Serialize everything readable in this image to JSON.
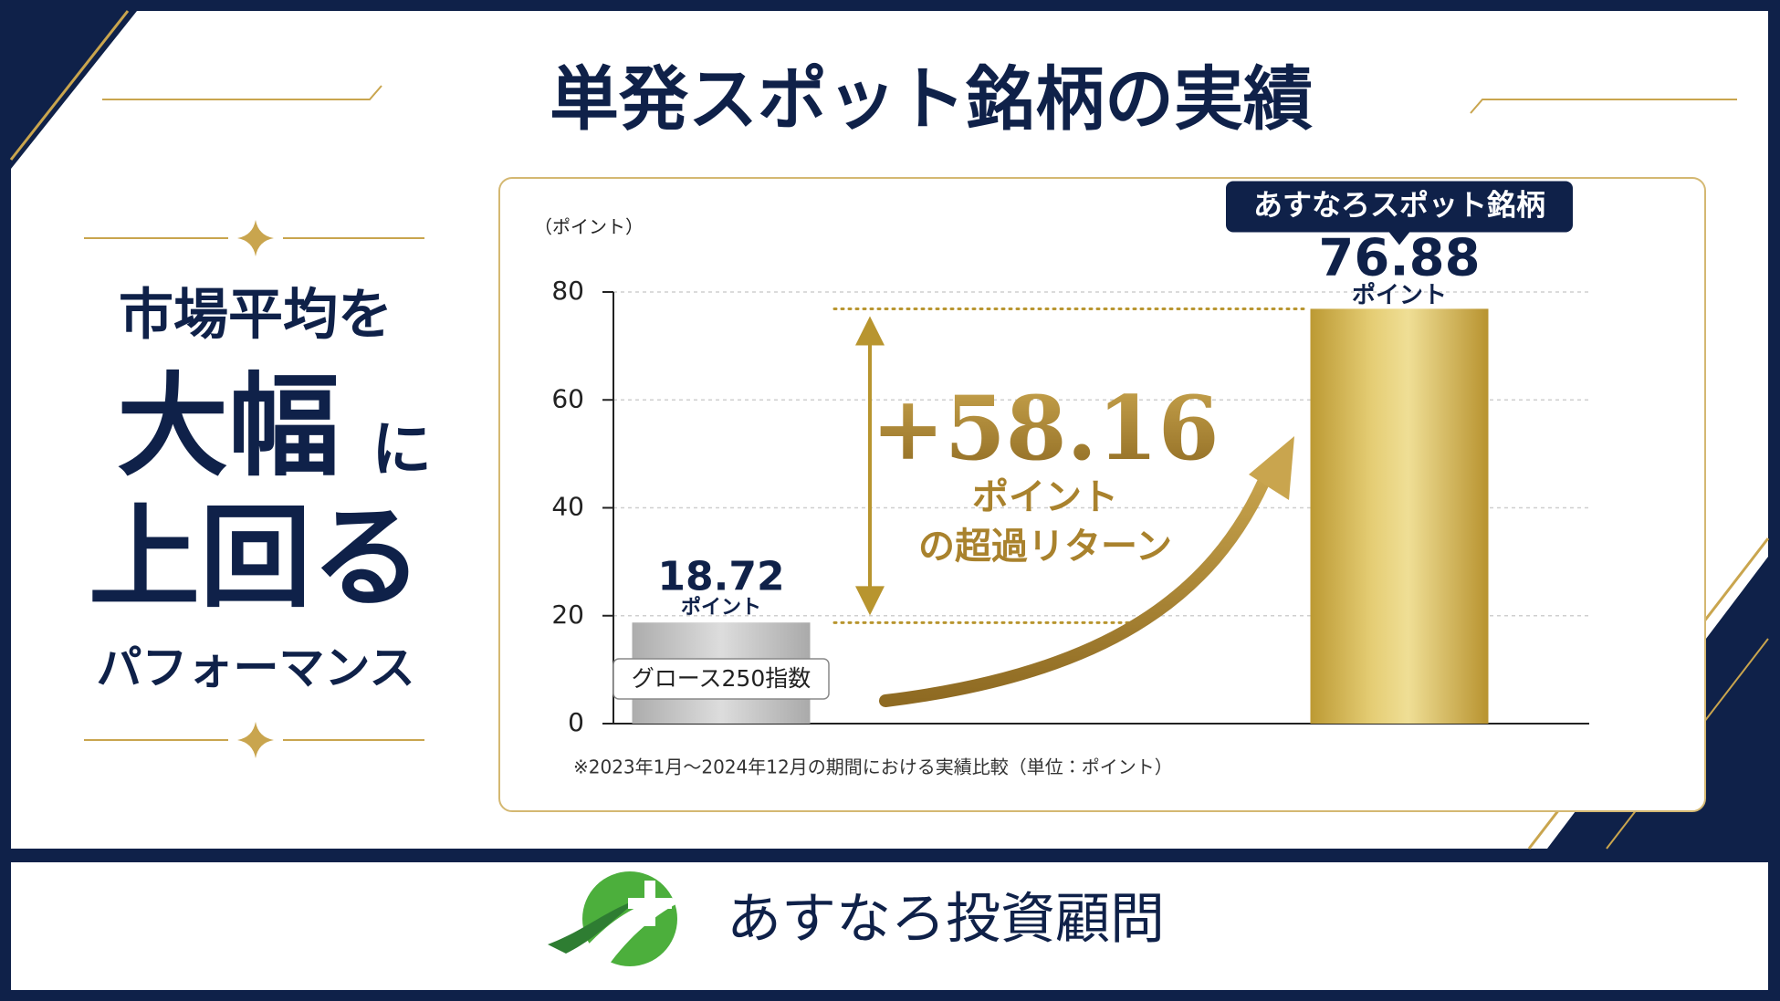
{
  "chart_data": {
    "type": "bar",
    "title": "単発スポット銘柄の実績",
    "y_label": "（ポイント）",
    "categories": [
      "グロース250指数",
      "あすなろスポット銘柄"
    ],
    "values": [
      18.72,
      76.88
    ],
    "value_unit": "ポイント",
    "colors": [
      "#bfbfbf",
      "#d4b44e"
    ],
    "ylim": [
      0,
      80
    ],
    "yticks": [
      0,
      20,
      40,
      60,
      80
    ],
    "grid": true,
    "annotation": {
      "value": "+58.16",
      "unit": "ポイント",
      "text": "の超過リターン"
    },
    "footnote": "※2023年1月～2024年12月の期間における実績比較（単位：ポイント）"
  },
  "tagline": [
    "市場平均を",
    "大幅",
    "に",
    "上回る",
    "パフォーマンス"
  ],
  "brand": "あすなろ投資顧問"
}
